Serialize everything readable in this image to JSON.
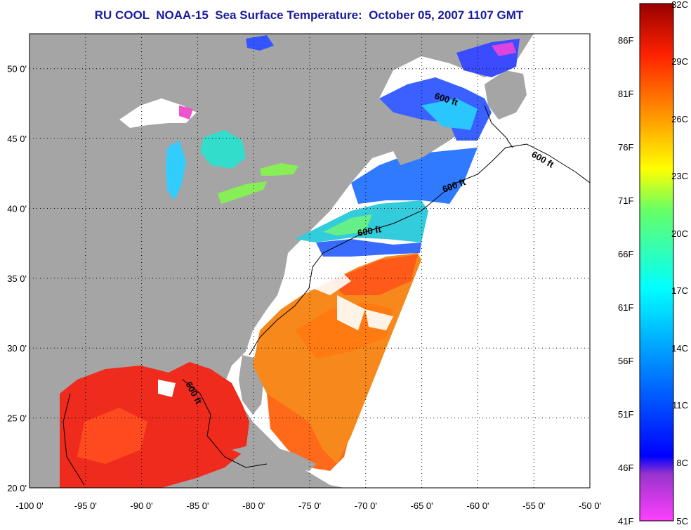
{
  "title": "RU COOL  NOAA-15  Sea Surface Temperature:  October 05, 2007 1107 GMT",
  "colors": {
    "land": "#a5a5a5",
    "ocean_nodata": "#ffffff",
    "title": "#1a1a9c"
  },
  "map": {
    "lon_range": [
      -100,
      -50
    ],
    "lat_range": [
      20,
      52.5
    ],
    "x_tick_labels": [
      "-100 0'",
      "-95 0'",
      "-90 0'",
      "-85 0'",
      "-80 0'",
      "-75 0'",
      "-70 0'",
      "-65 0'",
      "-60 0'",
      "-55 0'",
      "-50 0'"
    ],
    "y_tick_labels": [
      "20 0'",
      "25 0'",
      "30 0'",
      "35 0'",
      "40 0'",
      "45 0'",
      "50 0'"
    ],
    "grid": "dotted",
    "contour_label": "600 ft"
  },
  "colorbar": {
    "fahrenheit_labels": [
      "86F",
      "81F",
      "76F",
      "71F",
      "66F",
      "61F",
      "56F",
      "51F",
      "46F",
      "41F"
    ],
    "celsius_labels": [
      "32C",
      "29C",
      "26C",
      "23C",
      "20C",
      "17C",
      "14C",
      "11C",
      "8C",
      "5C"
    ]
  }
}
